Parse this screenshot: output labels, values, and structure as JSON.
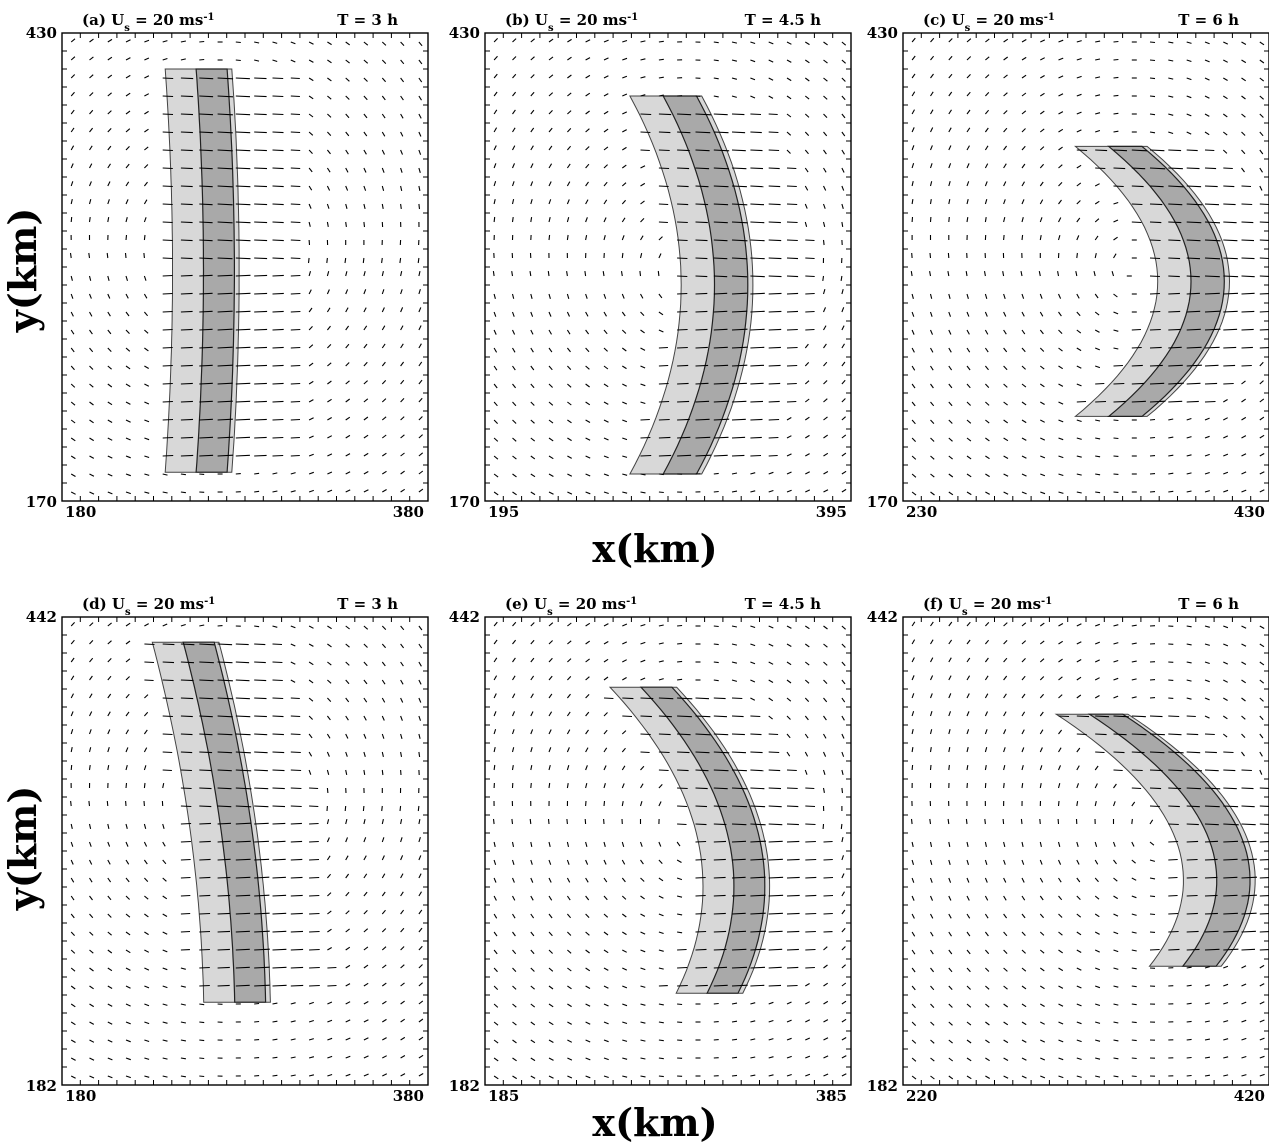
{
  "figure": {
    "xlabel": "x(km)",
    "ylabel": "y(km)"
  },
  "chart_data": [
    {
      "type": "vector-field-contour",
      "panel_label": "(a)",
      "shear_text": "U",
      "shear_sub": "s",
      "shear_value": "= 20 ms",
      "shear_sup": "-1",
      "time_label": "T = 3 h",
      "xlim": [
        180,
        380
      ],
      "ylim": [
        170,
        430
      ],
      "x_tick_labels": [
        "180",
        "380"
      ],
      "y_tick_labels": [
        "430",
        "170"
      ],
      "feature": {
        "shape": "line",
        "center_x": 265,
        "center_y": 298,
        "half_length": 112,
        "thickness": 13,
        "bow": 4,
        "tilt": 0
      },
      "grid": false
    },
    {
      "type": "vector-field-contour",
      "panel_label": "(b)",
      "shear_text": "U",
      "shear_sub": "s",
      "shear_value": "= 20 ms",
      "shear_sup": "-1",
      "time_label": "T = 4.5 h",
      "xlim": [
        195,
        395
      ],
      "ylim": [
        170,
        430
      ],
      "x_tick_labels": [
        "195",
        "395"
      ],
      "y_tick_labels": [
        "430",
        "170"
      ],
      "feature": {
        "shape": "bow",
        "center_x": 305,
        "center_y": 290,
        "half_length": 105,
        "thickness": 14,
        "bow": 28,
        "tilt": 0
      },
      "grid": false
    },
    {
      "type": "vector-field-contour",
      "panel_label": "(c)",
      "shear_text": "U",
      "shear_sub": "s",
      "shear_value": "= 20 ms",
      "shear_sup": "-1",
      "time_label": "T = 6 h",
      "xlim": [
        230,
        430
      ],
      "ylim": [
        170,
        430
      ],
      "x_tick_labels": [
        "230",
        "430"
      ],
      "y_tick_labels": [
        "430",
        "170"
      ],
      "feature": {
        "shape": "bow",
        "center_x": 355,
        "center_y": 292,
        "half_length": 75,
        "thickness": 14,
        "bow": 45,
        "tilt": 0
      },
      "grid": false
    },
    {
      "type": "vector-field-contour",
      "panel_label": "(d)",
      "shear_text": "U",
      "shear_sub": "s",
      "shear_value": "= 20 ms",
      "shear_sup": "-1",
      "time_label": "T = 3 h",
      "xlim": [
        180,
        380
      ],
      "ylim": [
        182,
        442
      ],
      "x_tick_labels": [
        "180",
        "380"
      ],
      "y_tick_labels": [
        "442",
        "182"
      ],
      "feature": {
        "shape": "line",
        "center_x": 272,
        "center_y": 328,
        "half_length": 100,
        "thickness": 13,
        "bow": 6,
        "tilt": 8
      },
      "grid": false
    },
    {
      "type": "vector-field-contour",
      "panel_label": "(e)",
      "shear_text": "U",
      "shear_sub": "s",
      "shear_value": "= 20 ms",
      "shear_sup": "-1",
      "time_label": "T = 4.5 h",
      "xlim": [
        185,
        385
      ],
      "ylim": [
        182,
        442
      ],
      "x_tick_labels": [
        "185",
        "385"
      ],
      "y_tick_labels": [
        "442",
        "182"
      ],
      "feature": {
        "shape": "bow",
        "center_x": 300,
        "center_y": 318,
        "half_length": 85,
        "thickness": 13,
        "bow": 30,
        "tilt": 12
      },
      "grid": false
    },
    {
      "type": "vector-field-contour",
      "panel_label": "(f)",
      "shear_text": "U",
      "shear_sub": "s",
      "shear_value": "= 20 ms",
      "shear_sup": "-1",
      "time_label": "T = 6 h",
      "xlim": [
        220,
        420
      ],
      "ylim": [
        182,
        442
      ],
      "x_tick_labels": [
        "220",
        "420"
      ],
      "y_tick_labels": [
        "442",
        "182"
      ],
      "feature": {
        "shape": "bow",
        "center_x": 360,
        "center_y": 318,
        "half_length": 70,
        "thickness": 14,
        "bow": 40,
        "tilt": 20
      },
      "grid": false
    }
  ]
}
